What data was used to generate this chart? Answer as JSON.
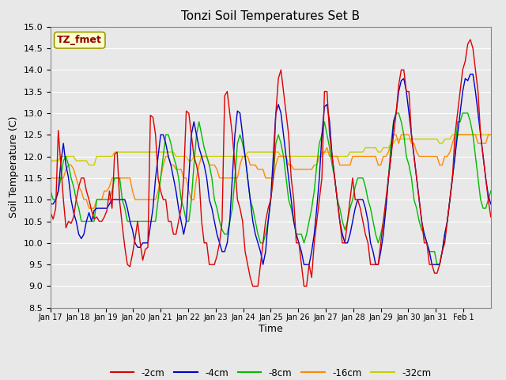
{
  "title": "Tonzi Soil Temperatures Set B",
  "xlabel": "Time",
  "ylabel": "Soil Temperature (C)",
  "ylim": [
    8.5,
    15.0
  ],
  "yticks": [
    8.5,
    9.0,
    9.5,
    10.0,
    10.5,
    11.0,
    11.5,
    12.0,
    12.5,
    13.0,
    13.5,
    14.0,
    14.5,
    15.0
  ],
  "xtick_labels": [
    "Jan 17",
    "Jan 18",
    "Jan 19",
    "Jan 20",
    "Jan 21",
    "Jan 22",
    "Jan 23",
    "Jan 24",
    "Jan 25",
    "Jan 26",
    "Jan 27",
    "Jan 28",
    "Jan 29",
    "Jan 30",
    "Jan 31",
    "Feb 1"
  ],
  "annotation_text": "TZ_fmet",
  "annotation_color": "#8B0000",
  "annotation_bg": "#FFFFCC",
  "annotation_edge": "#999900",
  "bg_color": "#E8E8E8",
  "colors": {
    "-2cm": "#DD0000",
    "-4cm": "#0000CC",
    "-8cm": "#00BB00",
    "-16cm": "#FF8800",
    "-32cm": "#CCCC00"
  },
  "series": {
    "-2cm": [
      10.7,
      10.55,
      10.8,
      12.6,
      11.8,
      11.0,
      10.35,
      10.5,
      10.45,
      10.6,
      11.0,
      11.3,
      11.5,
      11.5,
      11.2,
      11.0,
      10.75,
      10.55,
      10.6,
      10.5,
      10.5,
      10.6,
      10.75,
      11.2,
      10.8,
      12.05,
      12.1,
      10.95,
      10.4,
      9.9,
      9.5,
      9.45,
      9.75,
      10.1,
      10.5,
      10.0,
      9.6,
      9.85,
      9.9,
      12.95,
      12.9,
      12.5,
      11.5,
      11.2,
      11.0,
      11.0,
      10.5,
      10.5,
      10.2,
      10.2,
      10.5,
      10.8,
      11.5,
      13.05,
      13.0,
      12.5,
      12.0,
      11.8,
      11.5,
      10.5,
      10.0,
      10.0,
      9.5,
      9.5,
      9.5,
      9.7,
      10.0,
      10.5,
      13.4,
      13.5,
      13.0,
      12.5,
      11.8,
      11.0,
      10.8,
      10.5,
      9.8,
      9.5,
      9.2,
      9.0,
      9.0,
      9.0,
      9.5,
      10.0,
      10.5,
      10.8,
      11.0,
      11.5,
      13.0,
      13.8,
      14.0,
      13.5,
      13.0,
      12.5,
      11.5,
      11.0,
      10.0,
      10.0,
      9.5,
      9.0,
      9.0,
      9.5,
      9.2,
      10.0,
      10.5,
      11.0,
      11.5,
      13.5,
      13.5,
      12.5,
      12.0,
      11.5,
      11.0,
      10.5,
      10.0,
      10.0,
      10.5,
      11.0,
      11.5,
      11.0,
      11.0,
      10.8,
      10.5,
      10.2,
      10.0,
      9.5,
      9.5,
      9.5,
      9.5,
      10.0,
      10.5,
      11.0,
      11.5,
      12.0,
      12.5,
      13.0,
      13.65,
      14.0,
      14.0,
      13.5,
      13.5,
      12.5,
      12.0,
      11.5,
      11.0,
      10.5,
      10.0,
      10.0,
      9.5,
      9.5,
      9.3,
      9.3,
      9.5,
      9.8,
      10.0,
      10.5,
      11.0,
      11.5,
      12.5,
      13.0,
      13.5,
      14.0,
      14.2,
      14.6,
      14.7,
      14.5,
      14.0,
      13.5,
      12.5,
      12.0,
      11.5,
      11.0,
      10.6
    ],
    "-4cm": [
      10.9,
      10.9,
      11.0,
      11.2,
      11.85,
      12.3,
      11.8,
      11.5,
      11.0,
      10.7,
      10.5,
      10.2,
      10.1,
      10.2,
      10.5,
      10.7,
      10.5,
      10.75,
      10.8,
      10.8,
      10.8,
      10.8,
      10.8,
      10.9,
      11.0,
      11.0,
      11.0,
      11.0,
      11.0,
      11.0,
      10.8,
      10.5,
      10.3,
      10.0,
      9.9,
      9.9,
      10.0,
      10.0,
      10.0,
      10.4,
      10.8,
      11.5,
      12.0,
      12.5,
      12.5,
      12.3,
      12.0,
      11.8,
      11.5,
      11.2,
      10.8,
      10.5,
      10.2,
      10.5,
      11.5,
      12.5,
      12.8,
      12.5,
      12.2,
      12.0,
      11.8,
      11.5,
      11.0,
      10.8,
      10.5,
      10.2,
      10.0,
      9.8,
      9.8,
      10.0,
      10.5,
      11.5,
      12.5,
      13.05,
      13.0,
      12.5,
      12.0,
      11.5,
      11.0,
      10.5,
      10.2,
      10.0,
      9.8,
      9.5,
      9.8,
      10.5,
      11.0,
      12.0,
      13.0,
      13.2,
      13.0,
      12.5,
      12.0,
      11.5,
      11.0,
      10.5,
      10.2,
      10.0,
      9.8,
      9.5,
      9.5,
      9.5,
      9.8,
      10.2,
      10.8,
      11.5,
      12.5,
      13.15,
      13.2,
      12.8,
      12.0,
      11.5,
      11.0,
      10.5,
      10.2,
      10.0,
      10.0,
      10.2,
      10.5,
      10.8,
      11.0,
      11.0,
      11.0,
      10.8,
      10.5,
      10.0,
      9.8,
      9.5,
      9.5,
      9.8,
      10.2,
      10.8,
      11.5,
      12.0,
      12.8,
      13.0,
      13.5,
      13.75,
      13.8,
      13.5,
      13.0,
      12.5,
      12.0,
      11.5,
      11.0,
      10.5,
      10.2,
      10.0,
      9.8,
      9.5,
      9.5,
      9.5,
      9.5,
      9.8,
      10.2,
      10.5,
      11.0,
      11.5,
      12.0,
      12.5,
      13.0,
      13.5,
      13.8,
      13.75,
      13.9,
      13.9,
      13.5,
      13.0,
      12.5,
      12.0,
      11.5,
      11.1,
      10.9
    ],
    "-8cm": [
      11.2,
      11.0,
      11.0,
      11.2,
      11.5,
      11.9,
      12.0,
      11.8,
      11.5,
      11.3,
      11.0,
      10.8,
      10.5,
      10.5,
      10.5,
      10.5,
      10.5,
      10.5,
      11.0,
      11.0,
      11.0,
      11.0,
      11.0,
      11.0,
      11.2,
      11.5,
      11.5,
      11.5,
      11.0,
      10.8,
      10.5,
      10.5,
      10.5,
      10.5,
      10.5,
      10.5,
      10.5,
      10.5,
      10.5,
      10.5,
      10.5,
      10.5,
      11.0,
      11.5,
      12.0,
      12.5,
      12.5,
      12.3,
      12.0,
      11.8,
      11.5,
      11.0,
      10.8,
      10.5,
      10.5,
      11.0,
      11.8,
      12.5,
      12.8,
      12.5,
      12.2,
      12.0,
      11.8,
      11.5,
      11.0,
      10.8,
      10.5,
      10.3,
      10.2,
      10.2,
      10.5,
      10.8,
      11.5,
      12.3,
      12.5,
      12.3,
      12.0,
      11.5,
      11.0,
      10.8,
      10.5,
      10.2,
      10.0,
      10.0,
      10.2,
      10.5,
      11.0,
      11.5,
      12.3,
      12.5,
      12.3,
      12.0,
      11.5,
      11.0,
      10.8,
      10.5,
      10.2,
      10.2,
      10.2,
      10.0,
      10.2,
      10.5,
      10.8,
      11.2,
      11.8,
      12.3,
      12.5,
      12.8,
      12.5,
      12.2,
      11.8,
      11.5,
      11.0,
      10.8,
      10.5,
      10.3,
      10.5,
      10.8,
      11.0,
      11.3,
      11.5,
      11.5,
      11.5,
      11.3,
      11.0,
      10.8,
      10.5,
      10.2,
      10.0,
      10.2,
      10.5,
      10.8,
      11.5,
      12.3,
      12.8,
      13.0,
      13.0,
      12.8,
      12.5,
      12.0,
      11.8,
      11.5,
      11.0,
      10.8,
      10.5,
      10.3,
      10.2,
      10.0,
      9.8,
      9.8,
      9.8,
      9.5,
      9.5,
      9.8,
      10.2,
      10.5,
      11.0,
      11.5,
      12.0,
      12.8,
      12.8,
      13.0,
      13.0,
      13.0,
      12.8,
      12.5,
      12.0,
      11.5,
      11.0,
      10.8,
      10.8,
      11.0,
      11.2
    ],
    "-16cm": [
      11.5,
      11.5,
      11.5,
      11.5,
      11.5,
      11.5,
      11.7,
      11.8,
      11.8,
      11.7,
      11.5,
      11.3,
      11.2,
      11.0,
      11.0,
      10.8,
      10.8,
      10.8,
      11.0,
      11.0,
      11.0,
      11.2,
      11.2,
      11.3,
      11.5,
      11.5,
      11.5,
      11.5,
      11.5,
      11.5,
      11.5,
      11.5,
      11.2,
      11.0,
      11.0,
      11.0,
      11.0,
      11.0,
      11.0,
      11.0,
      11.0,
      11.0,
      11.2,
      11.5,
      11.8,
      12.0,
      12.0,
      11.8,
      11.8,
      11.7,
      11.7,
      11.7,
      11.5,
      11.5,
      11.2,
      11.0,
      11.0,
      11.5,
      11.8,
      12.0,
      12.0,
      12.0,
      11.8,
      11.8,
      11.8,
      11.7,
      11.5,
      11.5,
      11.5,
      11.5,
      11.5,
      11.5,
      11.5,
      11.5,
      11.8,
      12.0,
      12.0,
      12.0,
      11.8,
      11.8,
      11.8,
      11.7,
      11.7,
      11.7,
      11.5,
      11.5,
      11.5,
      11.5,
      11.8,
      12.0,
      12.0,
      12.0,
      12.0,
      11.8,
      11.8,
      11.7,
      11.7,
      11.7,
      11.7,
      11.7,
      11.7,
      11.7,
      11.7,
      11.8,
      11.8,
      12.0,
      12.0,
      12.1,
      12.2,
      12.0,
      12.0,
      12.0,
      12.0,
      11.8,
      11.8,
      11.8,
      11.8,
      11.8,
      12.0,
      12.0,
      12.0,
      12.0,
      12.0,
      12.0,
      12.0,
      12.0,
      12.0,
      12.0,
      11.8,
      11.8,
      12.0,
      12.0,
      12.1,
      12.3,
      12.5,
      12.5,
      12.3,
      12.5,
      12.5,
      12.5,
      12.5,
      12.3,
      12.3,
      12.1,
      12.0,
      12.0,
      12.0,
      12.0,
      12.0,
      12.0,
      12.0,
      12.0,
      11.8,
      11.8,
      12.0,
      12.0,
      12.1,
      12.3,
      12.5,
      12.5,
      12.5,
      12.5,
      12.5,
      12.5,
      12.5,
      12.5,
      12.5,
      12.3,
      12.3,
      12.3,
      12.3,
      12.5,
      12.5
    ],
    "-32cm": [
      11.9,
      11.9,
      11.9,
      11.9,
      12.0,
      12.0,
      12.0,
      12.0,
      12.0,
      12.0,
      11.9,
      11.9,
      11.9,
      11.9,
      11.9,
      11.8,
      11.8,
      11.8,
      12.0,
      12.0,
      12.0,
      12.0,
      12.0,
      12.0,
      12.0,
      12.1,
      12.1,
      12.1,
      12.1,
      12.1,
      12.1,
      12.1,
      12.1,
      12.1,
      12.1,
      12.1,
      12.1,
      12.1,
      12.1,
      12.1,
      12.1,
      12.1,
      12.1,
      12.1,
      12.1,
      12.1,
      12.1,
      12.1,
      12.1,
      12.0,
      12.0,
      12.0,
      12.0,
      12.0,
      11.9,
      11.9,
      12.0,
      12.0,
      12.0,
      12.0,
      12.0,
      12.0,
      12.0,
      12.0,
      12.0,
      12.0,
      12.0,
      12.0,
      12.0,
      12.0,
      12.0,
      12.0,
      12.0,
      12.0,
      12.0,
      12.0,
      12.0,
      12.1,
      12.1,
      12.1,
      12.1,
      12.1,
      12.1,
      12.1,
      12.1,
      12.1,
      12.1,
      12.1,
      12.1,
      12.1,
      12.0,
      12.0,
      12.0,
      12.0,
      12.0,
      12.0,
      12.0,
      12.0,
      12.0,
      12.0,
      12.0,
      12.0,
      12.0,
      12.0,
      12.0,
      12.0,
      12.1,
      12.1,
      12.1,
      12.1,
      12.0,
      12.0,
      12.0,
      12.0,
      12.0,
      12.0,
      12.0,
      12.1,
      12.1,
      12.1,
      12.1,
      12.1,
      12.1,
      12.2,
      12.2,
      12.2,
      12.2,
      12.2,
      12.1,
      12.1,
      12.2,
      12.2,
      12.2,
      12.3,
      12.3,
      12.4,
      12.4,
      12.4,
      12.4,
      12.4,
      12.4,
      12.4,
      12.4,
      12.4,
      12.4,
      12.4,
      12.4,
      12.4,
      12.4,
      12.4,
      12.4,
      12.4,
      12.3,
      12.3,
      12.4,
      12.4,
      12.4,
      12.5,
      12.5,
      12.5,
      12.5,
      12.5,
      12.5,
      12.5,
      12.5,
      12.5,
      12.5,
      12.5,
      12.5,
      12.5,
      12.5,
      12.5,
      12.5
    ]
  }
}
